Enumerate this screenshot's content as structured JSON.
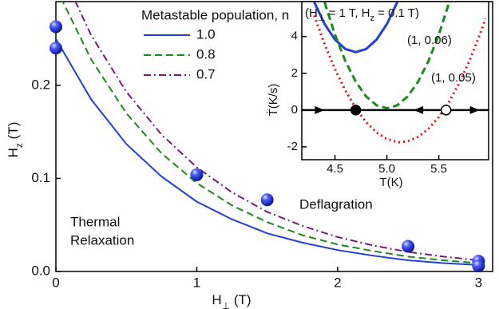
{
  "chart_data": [
    {
      "type": "line",
      "xlabel": [
        "H",
        "⊥",
        " (T)"
      ],
      "ylabel": [
        "H",
        "z",
        " (T)"
      ],
      "xlim": [
        0,
        3.1
      ],
      "ylim": [
        0,
        0.29
      ],
      "xticks": [
        0,
        1,
        2,
        3
      ],
      "yticks": [
        {
          "value": 0,
          "label": "0.0"
        },
        0.1,
        0.2
      ],
      "legend_title": "Metastable population, n",
      "x": [
        0,
        0.25,
        0.5,
        0.75,
        1,
        1.25,
        1.5,
        1.75,
        2,
        2.25,
        2.5,
        2.75,
        3
      ],
      "series": [
        {
          "name": "1.0",
          "color": "#1f3fd6",
          "dash": "solid",
          "values": [
            0.25,
            0.185,
            0.137,
            0.102,
            0.075,
            0.056,
            0.041,
            0.031,
            0.023,
            0.017,
            0.012,
            0.009,
            0.007
          ]
        },
        {
          "name": "0.8",
          "color": "#1a8a1a",
          "dash": "dashed",
          "values": [
            0.305,
            0.228,
            0.17,
            0.127,
            0.095,
            0.071,
            0.053,
            0.039,
            0.029,
            0.022,
            0.016,
            0.012,
            0.009
          ]
        },
        {
          "name": "0.7",
          "color": "#7a1a7a",
          "dash": "dashdot",
          "values": [
            0.335,
            0.254,
            0.193,
            0.147,
            0.112,
            0.085,
            0.064,
            0.049,
            0.037,
            0.028,
            0.021,
            0.016,
            0.012
          ]
        }
      ],
      "points": {
        "color": "#2a3bf0",
        "x": [
          0,
          0,
          1,
          1.5,
          2.5,
          3,
          3
        ],
        "values": [
          0.263,
          0.24,
          0.104,
          0.077,
          0.027,
          0.011,
          0.006
        ]
      },
      "annotations": [
        "Thermal",
        "Relaxation",
        "Deflagration"
      ]
    },
    {
      "type": "line",
      "xlabel": "T(K)",
      "ylabel": "Ṫ(K/s)",
      "xlim": [
        4.18,
        5.98
      ],
      "ylim": [
        -2.7,
        5.9
      ],
      "xticks": [
        4.5,
        {
          "value": 5,
          "label": "5.0"
        },
        5.5
      ],
      "yticks": [
        -2,
        0,
        2,
        4
      ],
      "series": [
        {
          "name": [
            "(H",
            "⊥",
            " = 1 T, H",
            "z",
            " = 0.1 T)"
          ],
          "color": "#1f3fd6",
          "dash": "solid",
          "x": [
            4.3,
            4.4,
            4.5,
            4.6,
            4.7,
            4.8,
            4.9,
            5.0,
            5.1
          ],
          "values": [
            5.87,
            4.68,
            3.83,
            3.32,
            3.15,
            3.32,
            3.83,
            4.68,
            5.87
          ]
        },
        {
          "name": [
            "(1, 0.06)"
          ],
          "color": "#1a8a1a",
          "dash": "dashed",
          "x": [
            4.4,
            4.5,
            4.6,
            4.7,
            4.8,
            4.9,
            5.0,
            5.1,
            5.2,
            5.3,
            5.4,
            5.5,
            5.6
          ],
          "values": [
            5.86,
            4.1,
            2.66,
            1.54,
            0.74,
            0.26,
            0.1,
            0.26,
            0.74,
            1.54,
            2.66,
            4.1,
            5.86
          ]
        },
        {
          "name": [
            "(1, 0.05)"
          ],
          "color": "#e01010",
          "dash": "dotted",
          "x": [
            4.3,
            4.4,
            4.5,
            4.6,
            4.7,
            4.8,
            4.9,
            5.0,
            5.1,
            5.13,
            5.2,
            5.3,
            5.4,
            5.5,
            5.6,
            5.7,
            5.8,
            5.9,
            5.95
          ],
          "values": [
            5.14,
            3.58,
            2.22,
            1.06,
            0.1,
            -0.66,
            -1.22,
            -1.58,
            -1.74,
            -1.75,
            -1.7,
            -1.46,
            -1.02,
            -0.38,
            0.46,
            1.5,
            2.74,
            4.18,
            4.97
          ]
        }
      ],
      "fixed_points": {
        "x": [
          4.7,
          5.57
        ],
        "values": [
          0,
          0
        ],
        "fills": [
          "#000000",
          "#ffffff"
        ]
      }
    }
  ]
}
